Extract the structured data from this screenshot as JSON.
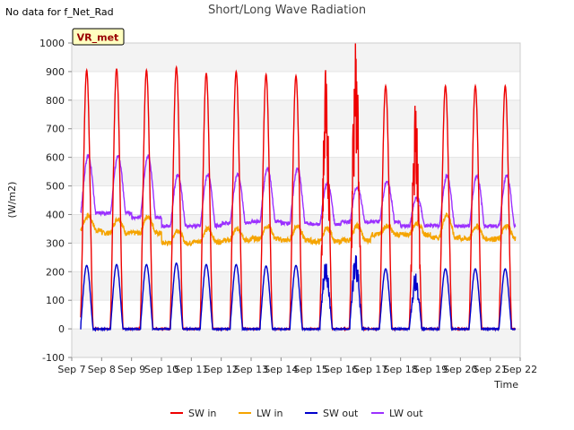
{
  "header": {
    "note": "No data for f_Net_Rad",
    "title": "Short/Long Wave Radiation"
  },
  "chart_data": {
    "type": "line",
    "title": "Short/Long Wave Radiation",
    "xlabel": "Time",
    "ylabel": "(W/m2)",
    "site_badge": "VR_met",
    "ylim": [
      -100,
      1000
    ],
    "xlim": [
      7,
      22
    ],
    "yticks": [
      -100,
      0,
      100,
      200,
      300,
      400,
      500,
      600,
      700,
      800,
      900,
      1000
    ],
    "xticks": [
      7,
      8,
      9,
      10,
      11,
      12,
      13,
      14,
      15,
      16,
      17,
      18,
      19,
      20,
      21,
      22
    ],
    "xtick_labels": [
      "Sep 7",
      "Sep 8",
      "Sep 9",
      "Sep 10",
      "Sep 11",
      "Sep 12",
      "Sep 13",
      "Sep 14",
      "Sep 15",
      "Sep 16",
      "Sep 17",
      "Sep 18",
      "Sep 19",
      "Sep 20",
      "Sep 21",
      "Sep 22"
    ],
    "grid": "horizontal bands",
    "legend_position": "bottom",
    "x_start": 7.3,
    "x_end": 21.85,
    "series": [
      {
        "name": "SW in",
        "color": "#ee0000",
        "daily_peak": [
          905,
          910,
          905,
          915,
          895,
          900,
          890,
          885,
          850,
          950,
          850,
          730,
          850,
          850
        ]
      },
      {
        "name": "LW in",
        "color": "#f5a400",
        "daily_peak": [
          395,
          385,
          395,
          345,
          350,
          350,
          360,
          360,
          350,
          360,
          360,
          370,
          400,
          360
        ],
        "daily_base": [
          345,
          335,
          335,
          300,
          305,
          310,
          315,
          310,
          305,
          310,
          330,
          330,
          320,
          315
        ]
      },
      {
        "name": "SW out",
        "color": "#0000cc",
        "daily_peak": [
          222,
          225,
          225,
          230,
          225,
          225,
          220,
          222,
          220,
          245,
          210,
          180,
          210,
          210
        ]
      },
      {
        "name": "LW out",
        "color": "#9b30ff",
        "daily_peak": [
          605,
          605,
          605,
          540,
          540,
          540,
          560,
          560,
          510,
          495,
          515,
          460,
          535,
          535
        ],
        "daily_base": [
          405,
          405,
          390,
          360,
          360,
          370,
          375,
          370,
          365,
          375,
          375,
          360,
          360,
          360
        ]
      }
    ]
  }
}
